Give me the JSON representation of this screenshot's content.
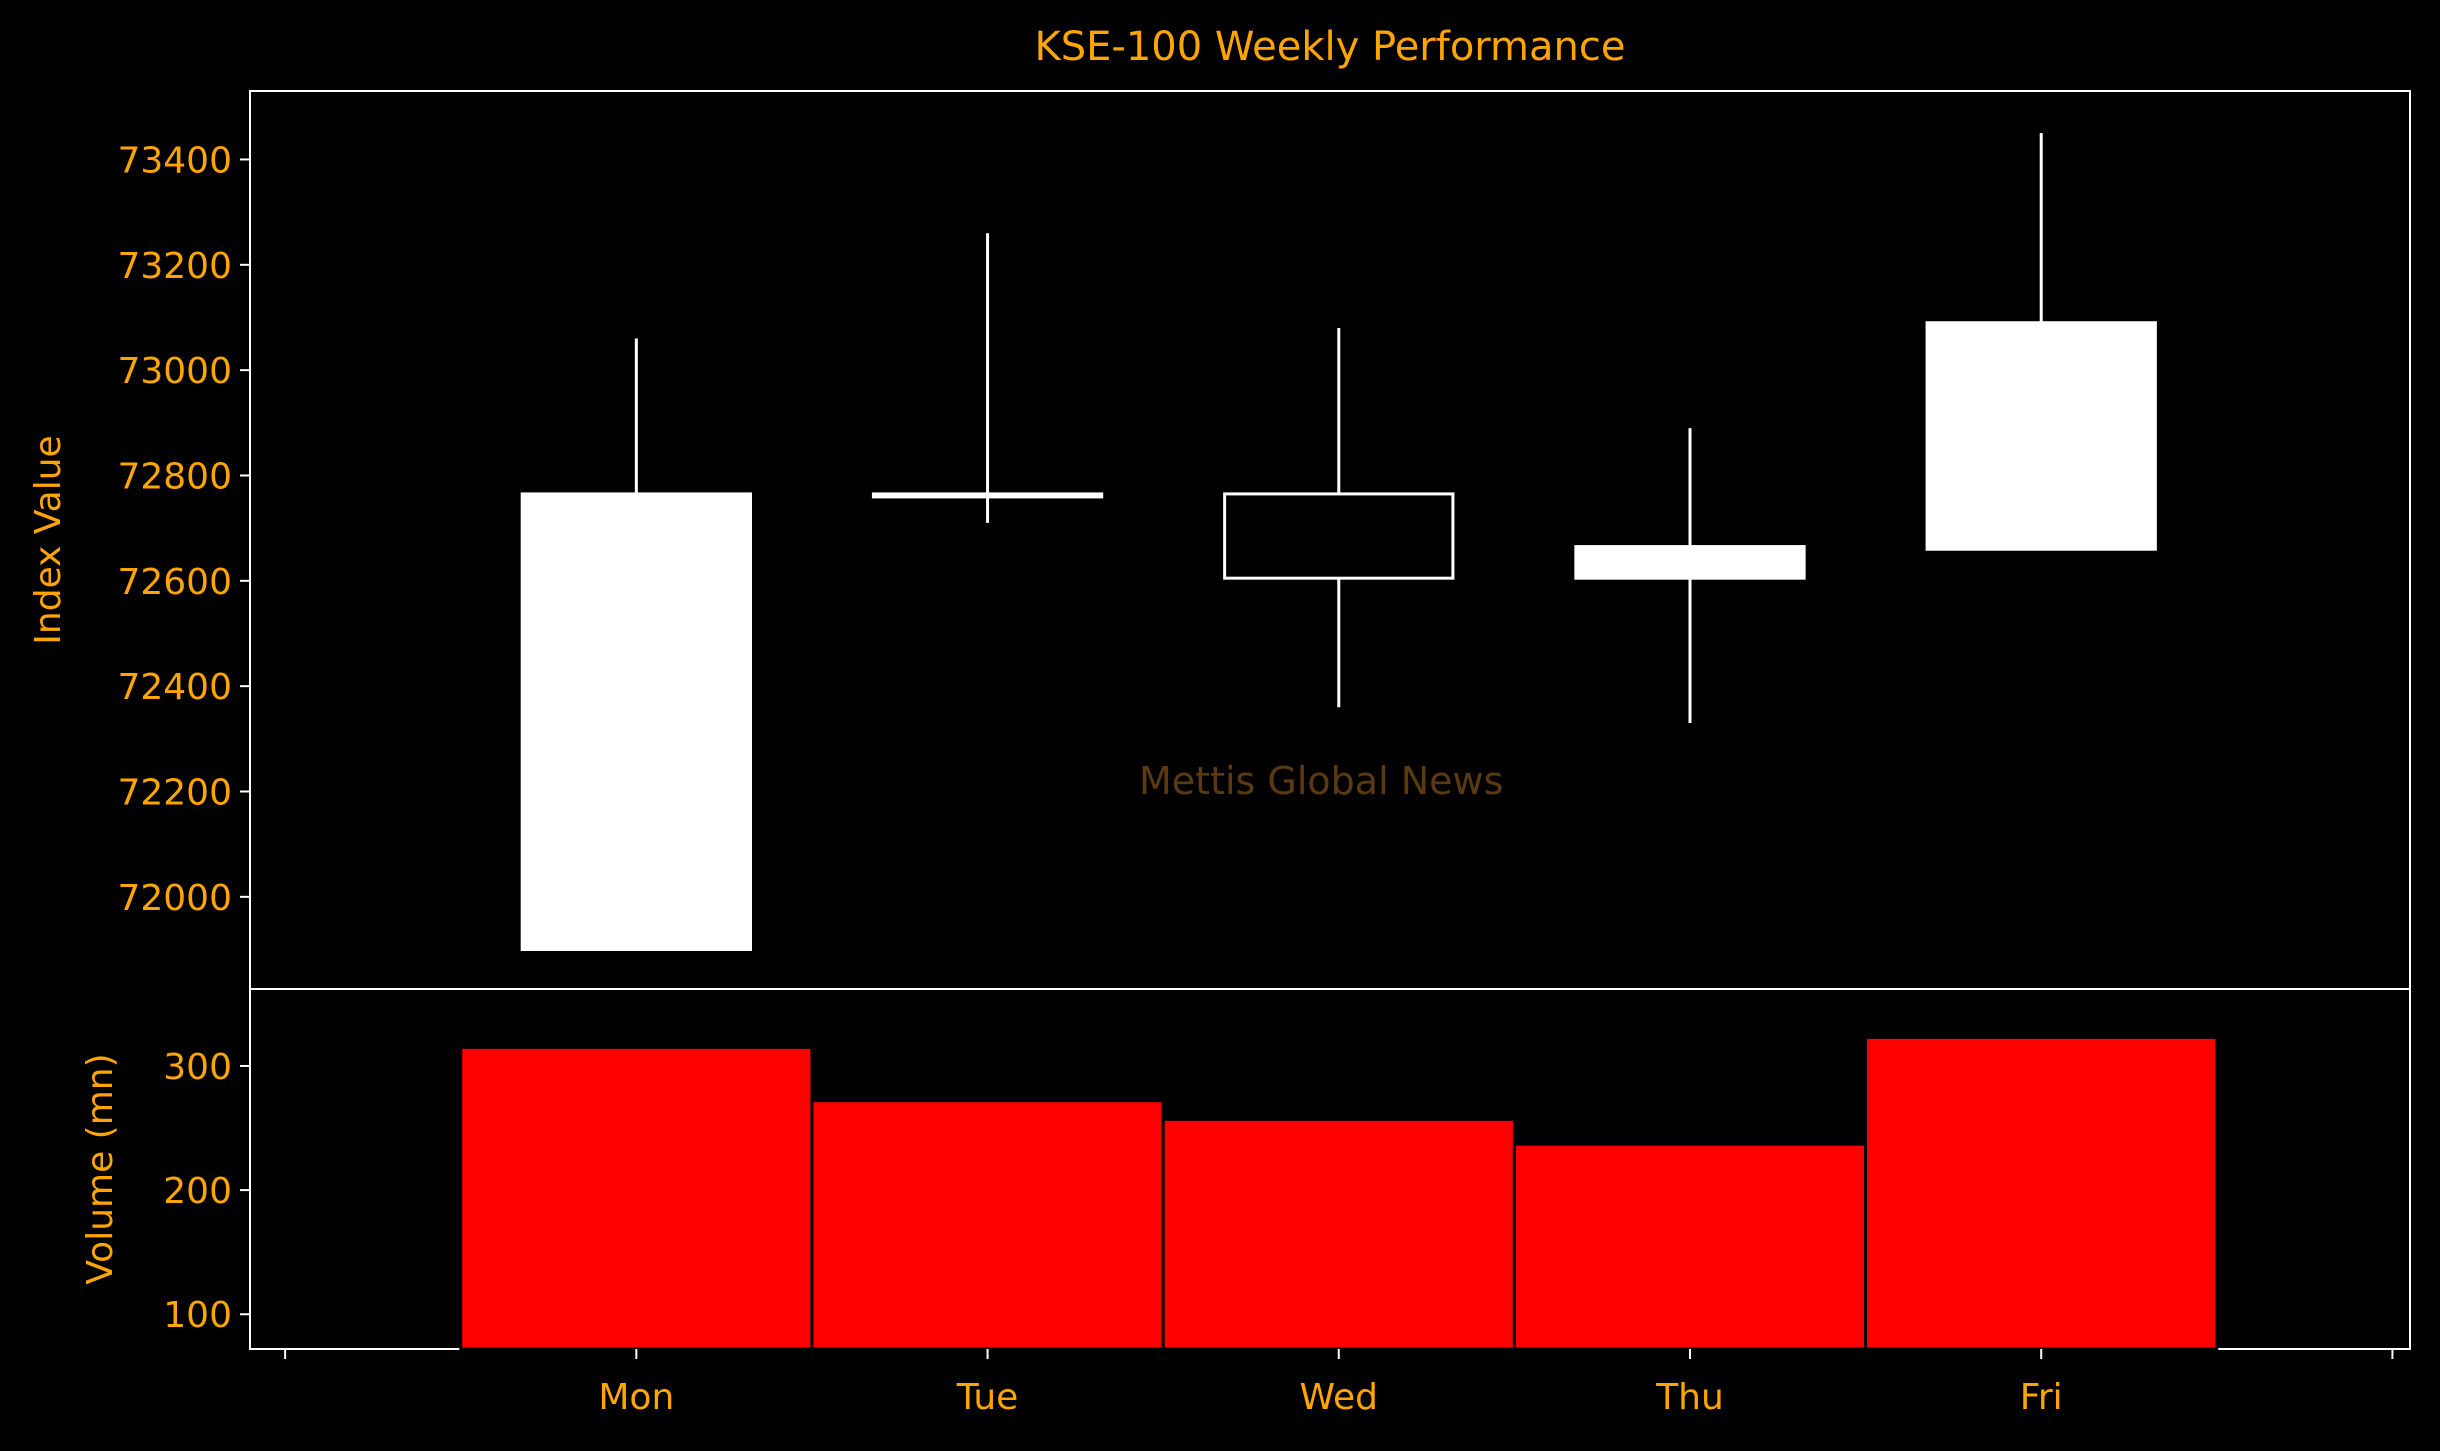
{
  "colors": {
    "background": "#000000",
    "text": "#FFA500",
    "axis": "#FFFFFF",
    "candle_up": "#FFFFFF",
    "candle_down": "#FFFFFF",
    "candle_down_fill": "#000000",
    "volume_bar": "#FF0000",
    "volume_bar_edge": "#000000",
    "watermark": "#5C3A10"
  },
  "chart_data": [
    {
      "type": "candlestick",
      "title": "KSE-100 Weekly Performance",
      "ylabel": "Index Value",
      "ylim": [
        71825,
        73530
      ],
      "yticks": [
        72000,
        72200,
        72400,
        72600,
        72800,
        73000,
        73200,
        73400
      ],
      "categories": [
        "Mon",
        "Tue",
        "Wed",
        "Thu",
        "Fri"
      ],
      "candles": [
        {
          "day": "Mon",
          "open": 71900,
          "close": 72765,
          "high": 73060,
          "low": 71900
        },
        {
          "day": "Tue",
          "open": 72765,
          "close": 72765,
          "high": 73260,
          "low": 72710
        },
        {
          "day": "Wed",
          "open": 72765,
          "close": 72605,
          "high": 73080,
          "low": 72360
        },
        {
          "day": "Thu",
          "open": 72605,
          "close": 72665,
          "high": 72890,
          "low": 72330
        },
        {
          "day": "Fri",
          "open": 72660,
          "close": 73090,
          "high": 73450,
          "low": 72660
        }
      ],
      "watermark": "Mettis Global News"
    },
    {
      "type": "bar",
      "ylabel": "Volume (mn)",
      "ylim": [
        72,
        362
      ],
      "yticks": [
        100,
        200,
        300
      ],
      "categories": [
        "Mon",
        "Tue",
        "Wed",
        "Thu",
        "Fri"
      ],
      "values": [
        315,
        272,
        257,
        237,
        323
      ]
    }
  ]
}
